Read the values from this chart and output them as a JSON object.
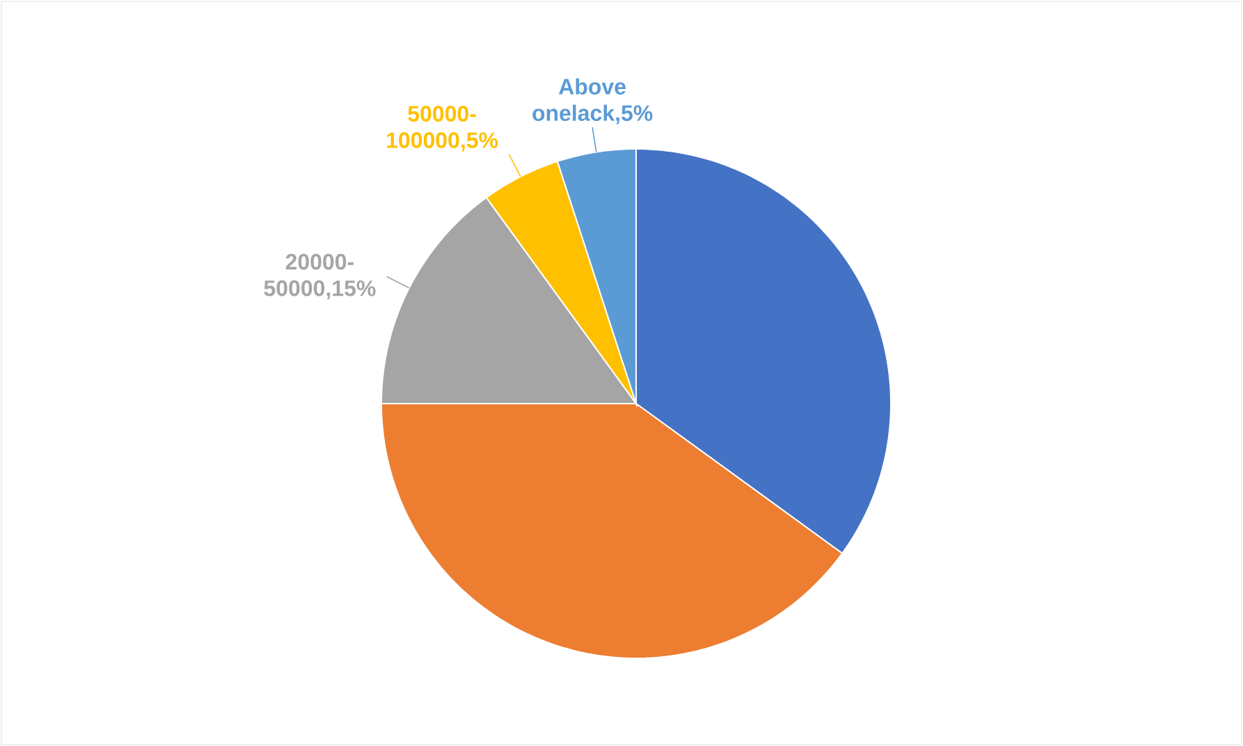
{
  "chart_data": {
    "type": "pie",
    "categories": [
      null,
      null,
      "20000-50000",
      "50000-100000",
      "Above onelack"
    ],
    "values": [
      35,
      40,
      15,
      5,
      5
    ],
    "colors": [
      "#4472c4",
      "#ed7d31",
      "#a5a5a5",
      "#ffc000",
      "#5b9bd5"
    ],
    "value_labels": [
      null,
      null,
      ",15%",
      ",5%",
      ",5%"
    ]
  }
}
